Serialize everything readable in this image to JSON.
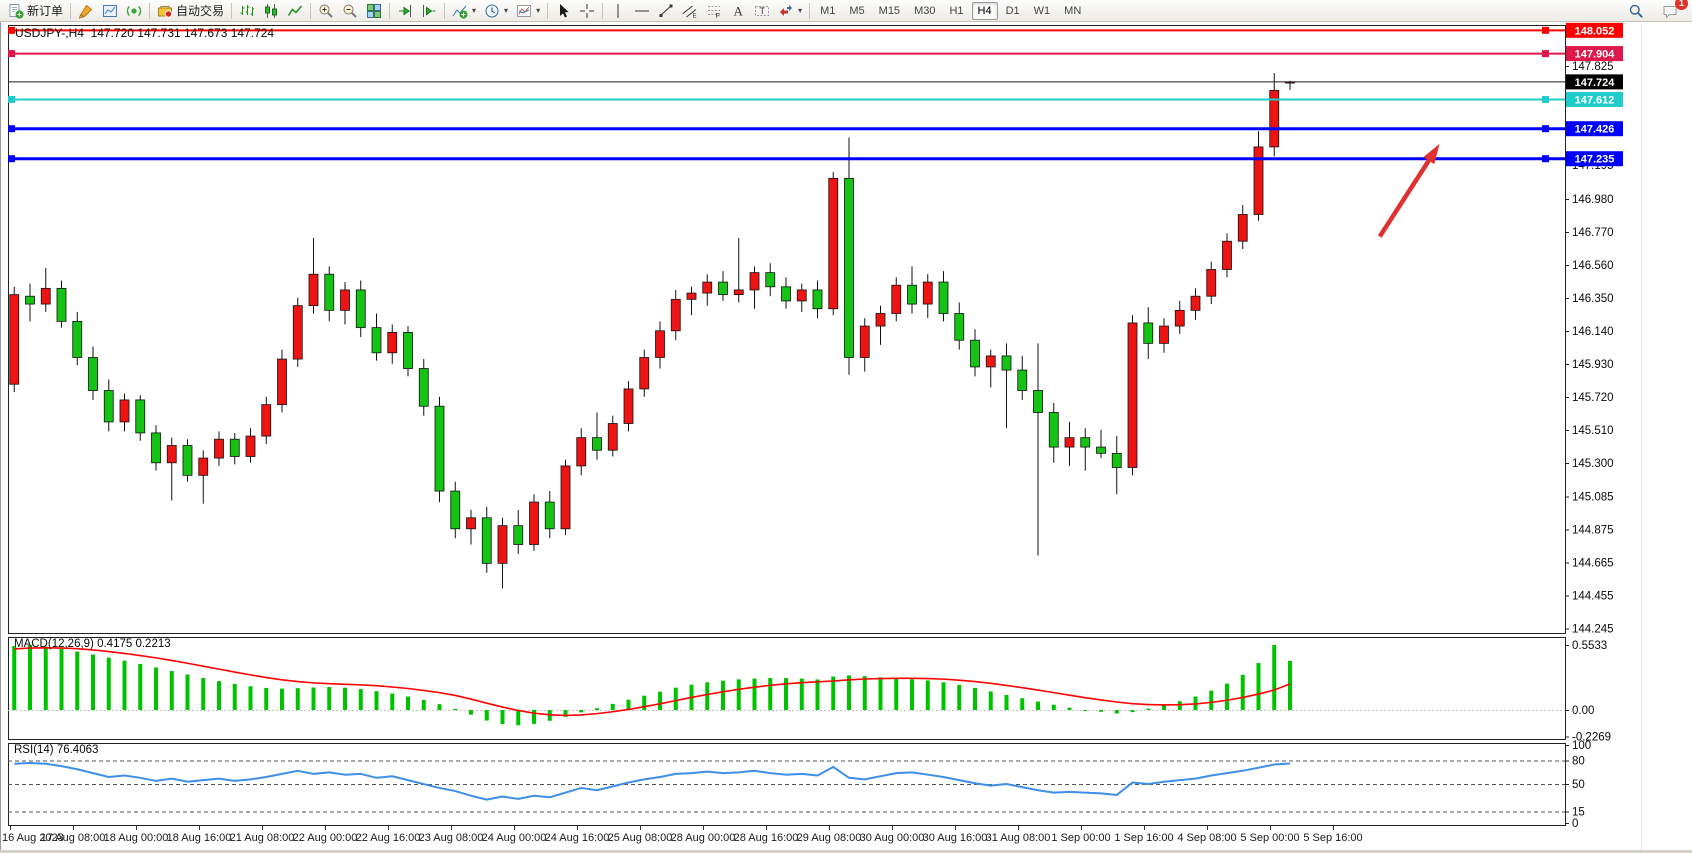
{
  "toolbar": {
    "new_order_label": "新订单",
    "auto_trading_label": "自动交易",
    "notification_count": "1",
    "groups": [
      {
        "items": [
          {
            "name": "new-order-button",
            "icon": "new-order",
            "label_key": "new_order_label"
          }
        ]
      },
      {
        "items": [
          {
            "name": "highlighter-button",
            "icon": "highlighter"
          },
          {
            "name": "chart-preview-button",
            "icon": "chart-preview"
          },
          {
            "name": "signal-button",
            "icon": "signal"
          }
        ]
      },
      {
        "items": [
          {
            "name": "auto-trading-button",
            "icon": "auto-trading",
            "label_key": "auto_trading_label"
          }
        ]
      },
      {
        "items": [
          {
            "name": "bar-chart-button",
            "icon": "bar-chart"
          },
          {
            "name": "candlestick-chart-button",
            "icon": "candlestick"
          },
          {
            "name": "line-chart-button",
            "icon": "line-chart"
          }
        ]
      },
      {
        "items": [
          {
            "name": "zoom-in-button",
            "icon": "zoom-in"
          },
          {
            "name": "zoom-out-button",
            "icon": "zoom-out"
          },
          {
            "name": "tile-windows-button",
            "icon": "tile-windows"
          }
        ]
      },
      {
        "items": [
          {
            "name": "auto-scroll-button",
            "icon": "auto-scroll"
          },
          {
            "name": "chart-shift-button",
            "icon": "chart-shift"
          }
        ]
      },
      {
        "items": [
          {
            "name": "indicators-button",
            "icon": "indicators",
            "dropdown": true
          },
          {
            "name": "periods-button",
            "icon": "periods",
            "dropdown": true
          },
          {
            "name": "templates-button",
            "icon": "templates",
            "dropdown": true
          }
        ]
      },
      {
        "items": [
          {
            "name": "cursor-button",
            "icon": "cursor"
          },
          {
            "name": "crosshair-button",
            "icon": "crosshair"
          }
        ]
      },
      {
        "items": [
          {
            "name": "vertical-line-button",
            "icon": "vertical-line"
          },
          {
            "name": "horizontal-line-button",
            "icon": "horizontal-line"
          },
          {
            "name": "trendline-button",
            "icon": "trendline"
          },
          {
            "name": "equidistant-channel-button",
            "icon": "equidistant-channel"
          },
          {
            "name": "fibonacci-button",
            "icon": "fibonacci"
          },
          {
            "name": "text-button",
            "icon": "text"
          },
          {
            "name": "text-label-button",
            "icon": "text-label"
          },
          {
            "name": "arrows-button",
            "icon": "arrows",
            "dropdown": true
          }
        ]
      }
    ],
    "timeframes": [
      {
        "label": "M1",
        "active": false
      },
      {
        "label": "M5",
        "active": false
      },
      {
        "label": "M15",
        "active": false
      },
      {
        "label": "M30",
        "active": false
      },
      {
        "label": "H1",
        "active": false
      },
      {
        "label": "H4",
        "active": true
      },
      {
        "label": "D1",
        "active": false
      },
      {
        "label": "W1",
        "active": false
      },
      {
        "label": "MN",
        "active": false
      }
    ]
  },
  "chart": {
    "title": "USDJPY-,H4  147.720 147.731 147.673 147.724",
    "macd_label": "MACD(12,26,9) 0.4175 0.2213",
    "rsi_label": "RSI(14) 76.4063",
    "current_price": 147.724,
    "current_price_label": "147.724",
    "levels": [
      {
        "price": 148.052,
        "label": "148.052",
        "color": "#ff0000",
        "line_width": 2
      },
      {
        "price": 147.904,
        "label": "147.904",
        "color": "#e0174b",
        "line_width": 2
      },
      {
        "price": 147.612,
        "label": "147.612",
        "color": "#1fcccc",
        "line_width": 2
      },
      {
        "price": 147.426,
        "label": "147.426",
        "color": "#0000ff",
        "line_width": 3
      },
      {
        "price": 147.235,
        "label": "147.235",
        "color": "#0000ff",
        "line_width": 3
      }
    ],
    "colors": {
      "candle_up": "#ee1414",
      "candle_down": "#14c314",
      "candle_border": "#111111",
      "wick": "#111111",
      "macd_hist": "#00c300",
      "macd_signal": "#ff0000",
      "rsi_line": "#3e8fe8",
      "bid_line": "#1a1a1a",
      "arrow": "#e03030",
      "axis_text": "#0a0a0a"
    }
  },
  "chart_data": {
    "type": "candlestick",
    "title": "USDJPY H4",
    "symbol": "USDJPY",
    "timeframe": "H4",
    "y_axis": {
      "ticks": [
        "147.825",
        "147.195",
        "146.980",
        "146.770",
        "146.560",
        "146.350",
        "146.140",
        "145.930",
        "145.720",
        "145.510",
        "145.300",
        "145.085",
        "144.875",
        "144.665",
        "144.455",
        "144.245"
      ],
      "min": 144.245,
      "max": 147.95
    },
    "x_labels": [
      "16 Aug 2023",
      "17 Aug 08:00",
      "18 Aug 00:00",
      "18 Aug 16:00",
      "21 Aug 08:00",
      "22 Aug 00:00",
      "22 Aug 16:00",
      "23 Aug 08:00",
      "24 Aug 00:00",
      "24 Aug 16:00",
      "25 Aug 08:00",
      "28 Aug 00:00",
      "28 Aug 16:00",
      "29 Aug 08:00",
      "30 Aug 00:00",
      "30 Aug 16:00",
      "31 Aug 08:00",
      "1 Sep 00:00",
      "1 Sep 16:00",
      "4 Sep 08:00",
      "5 Sep 00:00",
      "5 Sep 16:00"
    ],
    "candles": [
      [
        145.8,
        146.42,
        145.75,
        146.37
      ],
      [
        146.36,
        146.44,
        146.2,
        146.31
      ],
      [
        146.31,
        146.54,
        146.26,
        146.41
      ],
      [
        146.41,
        146.46,
        146.16,
        146.2
      ],
      [
        146.2,
        146.26,
        145.92,
        145.97
      ],
      [
        145.97,
        146.04,
        145.7,
        145.76
      ],
      [
        145.76,
        145.83,
        145.5,
        145.56
      ],
      [
        145.56,
        145.74,
        145.5,
        145.7
      ],
      [
        145.7,
        145.73,
        145.44,
        145.49
      ],
      [
        145.49,
        145.54,
        145.25,
        145.3
      ],
      [
        145.3,
        145.46,
        145.06,
        145.41
      ],
      [
        145.41,
        145.45,
        145.18,
        145.22
      ],
      [
        145.22,
        145.38,
        145.04,
        145.33
      ],
      [
        145.33,
        145.5,
        145.28,
        145.45
      ],
      [
        145.45,
        145.49,
        145.29,
        145.34
      ],
      [
        145.34,
        145.52,
        145.3,
        145.47
      ],
      [
        145.47,
        145.72,
        145.42,
        145.67
      ],
      [
        145.67,
        146.02,
        145.62,
        145.96
      ],
      [
        145.96,
        146.35,
        145.91,
        146.3
      ],
      [
        146.3,
        146.73,
        146.25,
        146.5
      ],
      [
        146.5,
        146.55,
        146.2,
        146.27
      ],
      [
        146.27,
        146.45,
        146.18,
        146.4
      ],
      [
        146.4,
        146.46,
        146.1,
        146.16
      ],
      [
        146.16,
        146.25,
        145.95,
        146.0
      ],
      [
        146.0,
        146.18,
        145.93,
        146.13
      ],
      [
        146.13,
        146.17,
        145.85,
        145.9
      ],
      [
        145.9,
        145.96,
        145.6,
        145.66
      ],
      [
        145.66,
        145.72,
        145.05,
        145.12
      ],
      [
        145.12,
        145.18,
        144.82,
        144.88
      ],
      [
        144.88,
        145.0,
        144.78,
        144.95
      ],
      [
        144.95,
        145.02,
        144.6,
        144.66
      ],
      [
        144.66,
        144.95,
        144.5,
        144.9
      ],
      [
        144.9,
        145.0,
        144.72,
        144.78
      ],
      [
        144.78,
        145.1,
        144.74,
        145.05
      ],
      [
        145.05,
        145.12,
        144.82,
        144.88
      ],
      [
        144.88,
        145.32,
        144.84,
        145.28
      ],
      [
        145.28,
        145.52,
        145.22,
        145.46
      ],
      [
        145.46,
        145.62,
        145.32,
        145.38
      ],
      [
        145.38,
        145.6,
        145.34,
        145.55
      ],
      [
        145.55,
        145.82,
        145.5,
        145.77
      ],
      [
        145.77,
        146.02,
        145.72,
        145.97
      ],
      [
        145.97,
        146.2,
        145.9,
        146.14
      ],
      [
        146.14,
        146.4,
        146.08,
        146.34
      ],
      [
        146.34,
        146.42,
        146.24,
        146.38
      ],
      [
        146.38,
        146.5,
        146.3,
        146.45
      ],
      [
        146.45,
        146.52,
        146.33,
        146.37
      ],
      [
        146.37,
        146.73,
        146.32,
        146.4
      ],
      [
        146.4,
        146.55,
        146.28,
        146.51
      ],
      [
        146.51,
        146.57,
        146.36,
        146.42
      ],
      [
        146.42,
        146.48,
        146.28,
        146.33
      ],
      [
        146.33,
        146.44,
        146.26,
        146.4
      ],
      [
        146.4,
        146.46,
        146.22,
        146.28
      ],
      [
        146.28,
        147.15,
        146.24,
        147.11
      ],
      [
        147.11,
        147.37,
        145.86,
        145.97
      ],
      [
        145.97,
        146.22,
        145.88,
        146.17
      ],
      [
        146.17,
        146.3,
        146.05,
        146.25
      ],
      [
        146.25,
        146.48,
        146.2,
        146.43
      ],
      [
        146.43,
        146.55,
        146.25,
        146.31
      ],
      [
        146.31,
        146.5,
        146.22,
        146.45
      ],
      [
        146.45,
        146.52,
        146.2,
        146.25
      ],
      [
        146.25,
        146.32,
        146.02,
        146.08
      ],
      [
        146.08,
        146.15,
        145.85,
        145.91
      ],
      [
        145.91,
        146.02,
        145.78,
        145.98
      ],
      [
        145.98,
        146.06,
        145.52,
        145.89
      ],
      [
        145.89,
        145.98,
        145.7,
        145.76
      ],
      [
        145.76,
        146.06,
        144.71,
        145.62
      ],
      [
        145.62,
        145.68,
        145.3,
        145.4
      ],
      [
        145.4,
        145.56,
        145.28,
        145.46
      ],
      [
        145.46,
        145.52,
        145.25,
        145.4
      ],
      [
        145.4,
        145.51,
        145.33,
        145.36
      ],
      [
        145.36,
        145.47,
        145.1,
        145.27
      ],
      [
        145.27,
        146.24,
        145.22,
        146.19
      ],
      [
        146.19,
        146.29,
        145.96,
        146.06
      ],
      [
        146.06,
        146.22,
        146.0,
        146.17
      ],
      [
        146.17,
        146.33,
        146.12,
        146.27
      ],
      [
        146.27,
        146.41,
        146.21,
        146.36
      ],
      [
        146.36,
        146.58,
        146.31,
        146.53
      ],
      [
        146.53,
        146.76,
        146.48,
        146.71
      ],
      [
        146.71,
        146.94,
        146.66,
        146.88
      ],
      [
        146.88,
        147.41,
        146.84,
        147.31
      ],
      [
        147.31,
        147.78,
        147.25,
        147.67
      ],
      [
        147.72,
        147.731,
        147.673,
        147.724
      ]
    ],
    "macd": {
      "label": "MACD(12,26,9)",
      "main_value": 0.4175,
      "signal_value": 0.2213,
      "axis_ticks": [
        "0.5533",
        "0.00",
        "-0.2269"
      ],
      "axis_tick_values": [
        0.5533,
        0.0,
        -0.2269
      ],
      "hist": [
        0.545,
        0.553,
        0.54,
        0.52,
        0.498,
        0.472,
        0.446,
        0.42,
        0.392,
        0.362,
        0.332,
        0.302,
        0.272,
        0.246,
        0.222,
        0.202,
        0.188,
        0.182,
        0.186,
        0.192,
        0.196,
        0.19,
        0.178,
        0.16,
        0.14,
        0.115,
        0.085,
        0.05,
        0.01,
        -0.04,
        -0.09,
        -0.12,
        -0.13,
        -0.118,
        -0.092,
        -0.058,
        -0.02,
        0.015,
        0.052,
        0.088,
        0.122,
        0.156,
        0.19,
        0.216,
        0.236,
        0.25,
        0.261,
        0.268,
        0.272,
        0.272,
        0.268,
        0.26,
        0.285,
        0.295,
        0.288,
        0.278,
        0.27,
        0.262,
        0.252,
        0.236,
        0.214,
        0.188,
        0.158,
        0.128,
        0.1,
        0.072,
        0.045,
        0.02,
        0.0,
        -0.015,
        -0.03,
        -0.018,
        0.012,
        0.042,
        0.075,
        0.115,
        0.165,
        0.225,
        0.3,
        0.4,
        0.5533,
        0.4175
      ],
      "signal": [
        0.52,
        0.528,
        0.53,
        0.528,
        0.522,
        0.512,
        0.498,
        0.482,
        0.464,
        0.444,
        0.422,
        0.398,
        0.373,
        0.348,
        0.323,
        0.299,
        0.276,
        0.257,
        0.242,
        0.231,
        0.224,
        0.219,
        0.214,
        0.207,
        0.196,
        0.183,
        0.167,
        0.148,
        0.124,
        0.093,
        0.058,
        0.025,
        -0.004,
        -0.027,
        -0.041,
        -0.046,
        -0.042,
        -0.031,
        -0.015,
        0.005,
        0.028,
        0.053,
        0.08,
        0.107,
        0.132,
        0.155,
        0.176,
        0.194,
        0.21,
        0.223,
        0.233,
        0.24,
        0.247,
        0.257,
        0.264,
        0.268,
        0.27,
        0.27,
        0.268,
        0.263,
        0.254,
        0.242,
        0.227,
        0.209,
        0.19,
        0.17,
        0.148,
        0.126,
        0.105,
        0.086,
        0.068,
        0.054,
        0.046,
        0.043,
        0.045,
        0.052,
        0.065,
        0.083,
        0.107,
        0.136,
        0.17,
        0.2213
      ]
    },
    "rsi": {
      "label": "RSI(14)",
      "value": 76.4063,
      "axis_ticks": [
        "100",
        "80",
        "50",
        "15",
        "0"
      ],
      "axis_tick_values": [
        100,
        80,
        50,
        15,
        0
      ],
      "levels": [
        80,
        50,
        15
      ],
      "values": [
        76,
        77,
        76,
        73,
        69,
        64,
        59,
        61,
        58,
        54,
        57,
        53,
        55,
        57,
        54,
        56,
        59,
        63,
        67,
        63,
        65,
        62,
        63,
        58,
        60,
        55,
        50,
        45,
        41,
        35,
        30,
        34,
        31,
        35,
        33,
        39,
        45,
        42,
        47,
        52,
        56,
        59,
        63,
        64,
        66,
        64,
        65,
        67,
        64,
        62,
        63,
        61,
        72,
        58,
        56,
        60,
        64,
        65,
        62,
        59,
        55,
        51,
        48,
        50,
        46,
        42,
        39,
        40,
        39,
        38,
        36,
        52,
        50,
        53,
        55,
        57,
        61,
        64,
        67,
        71,
        75,
        76.41
      ]
    },
    "annotations": [
      {
        "type": "arrow",
        "color": "#e03030",
        "from": {
          "bar": 86.7,
          "price": 146.74
        },
        "to": {
          "bar": 90.5,
          "price": 147.33
        }
      }
    ]
  }
}
